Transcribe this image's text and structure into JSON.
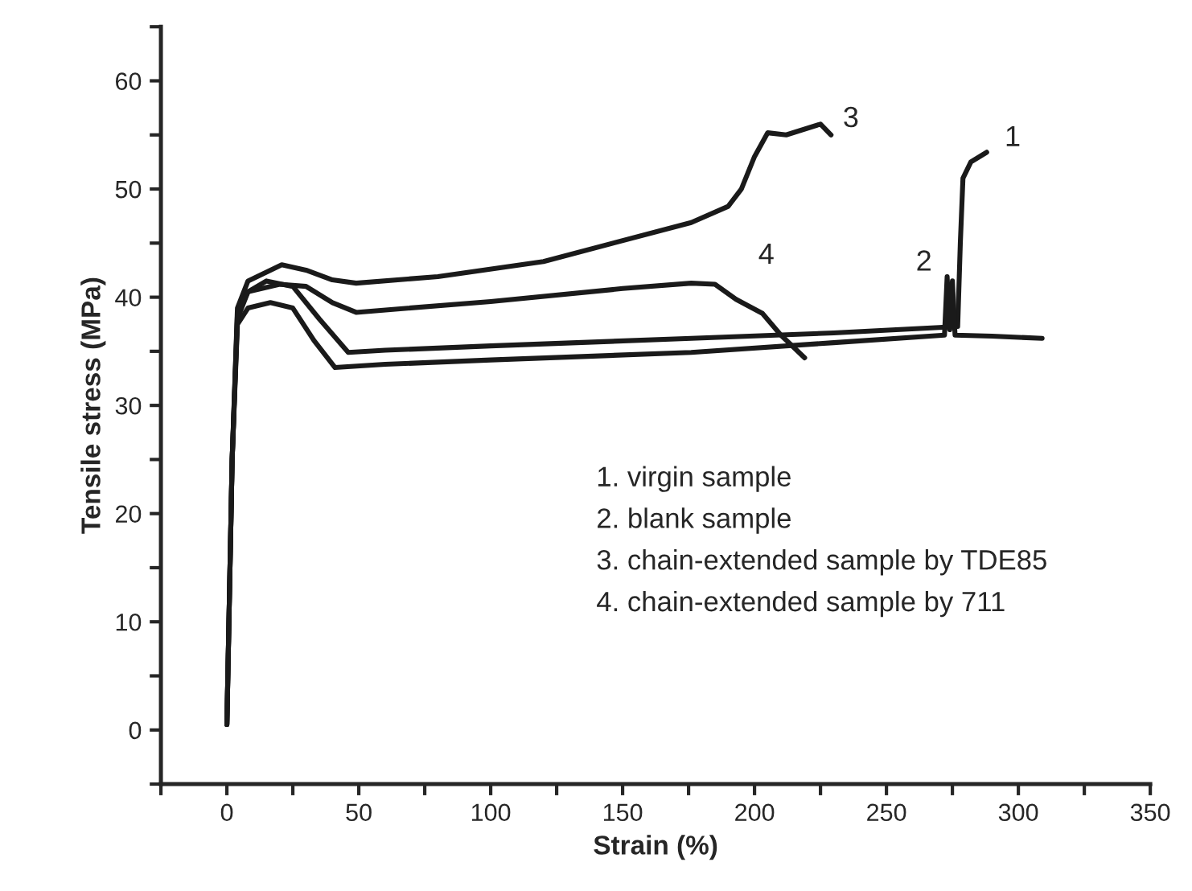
{
  "chart_data": {
    "type": "line",
    "xlabel": "Strain (%)",
    "ylabel": "Tensile stress (MPa)",
    "xlim": [
      -25,
      350
    ],
    "ylim": [
      -5,
      65
    ],
    "xticks": [
      {
        "value": -25,
        "label": null
      },
      0,
      {
        "value": 25,
        "label": null
      },
      50,
      {
        "value": 75,
        "label": null
      },
      100,
      {
        "value": 125,
        "label": null
      },
      150,
      {
        "value": 175,
        "label": null
      },
      200,
      {
        "value": 225,
        "label": null
      },
      250,
      {
        "value": 275,
        "label": null
      },
      300,
      {
        "value": 325,
        "label": null
      },
      350
    ],
    "yticks": [
      {
        "value": -5,
        "label": null
      },
      0,
      {
        "value": 5,
        "label": null
      },
      10,
      {
        "value": 15,
        "label": null
      },
      20,
      {
        "value": 25,
        "label": null
      },
      30,
      {
        "value": 35,
        "label": null
      },
      40,
      {
        "value": 45,
        "label": null
      },
      50,
      {
        "value": 55,
        "label": null
      },
      60,
      {
        "value": 65,
        "label": null
      }
    ],
    "grid": false,
    "legend": false,
    "marker": "none",
    "line_style": "solid",
    "series": [
      {
        "name": "1",
        "color": "#1a1a1a",
        "x": [
          0,
          2,
          4,
          8,
          15,
          25,
          35,
          46,
          60,
          100,
          176,
          230,
          270,
          277,
          278,
          279,
          282,
          288
        ],
        "values": [
          0.5,
          25,
          38,
          40.5,
          41.5,
          41,
          38,
          34.9,
          35.1,
          35.5,
          36.2,
          36.7,
          37.2,
          37.3,
          45,
          51,
          52.5,
          53.4
        ]
      },
      {
        "name": "2",
        "color": "#1a1a1a",
        "x": [
          0,
          2,
          4,
          8,
          16.5,
          25,
          33,
          41,
          60,
          100,
          176,
          230,
          272,
          273,
          274,
          275,
          276,
          290,
          309
        ],
        "values": [
          0.5,
          25,
          37.5,
          39,
          39.5,
          39,
          36,
          33.5,
          33.8,
          34.2,
          34.9,
          35.8,
          36.5,
          41.9,
          37,
          41.5,
          36.5,
          36.4,
          36.2
        ]
      },
      {
        "name": "3",
        "color": "#1a1a1a",
        "x": [
          0,
          2,
          4,
          8,
          20.8,
          30,
          40,
          49,
          80,
          120,
          176,
          190,
          195,
          200,
          205,
          212,
          225,
          229
        ],
        "values": [
          0.5,
          25,
          39,
          41.5,
          43,
          42.5,
          41.6,
          41.3,
          41.9,
          43.3,
          46.9,
          48.4,
          50,
          53,
          55.2,
          55,
          56,
          55
        ]
      },
      {
        "name": "4",
        "color": "#1a1a1a",
        "x": [
          0,
          2,
          4,
          8,
          20,
          30,
          40,
          49,
          100,
          150,
          176,
          185,
          193,
          203,
          210,
          219
        ],
        "values": [
          0.5,
          25,
          38.5,
          40.5,
          41.2,
          41,
          39.5,
          38.6,
          39.6,
          40.8,
          41.3,
          41.2,
          39.8,
          38.5,
          36.5,
          34.4
        ]
      }
    ],
    "annotations": [
      "1. virgin sample",
      "2. blank sample",
      "3. chain-extended sample by TDE85",
      "4. chain-extended sample by 711"
    ]
  }
}
